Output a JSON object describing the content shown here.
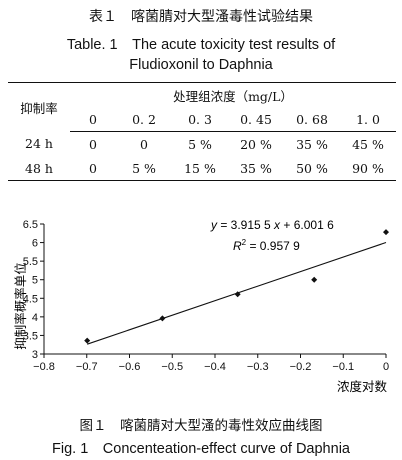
{
  "table": {
    "caption_cn": "表１　喀菌腈对大型溞毒性试验结果",
    "caption_en_line1": "Table. 1　The acute toxicity test results of",
    "caption_en_line2": "Fludioxonil to Daphnia",
    "row_header": "抑制率",
    "group_header": "处理组浓度（mg/L）",
    "columns": [
      "0",
      "0. 2",
      "0. 3",
      "0. 45",
      "0. 68",
      "1. 0"
    ],
    "rows": [
      {
        "label": "24 h",
        "cells": [
          "0",
          "0",
          "5 %",
          "20 %",
          "35 %",
          "45 %"
        ]
      },
      {
        "label": "48 h",
        "cells": [
          "0",
          "5 %",
          "15 %",
          "35 %",
          "50 %",
          "90 %"
        ]
      }
    ]
  },
  "figure": {
    "caption_cn": "图１　喀菌腈对大型溞的毒性效应曲线图",
    "caption_en": "Fig. 1　Concenteation-effect curve of Daphnia"
  },
  "chart_data": {
    "type": "scatter",
    "ylabel": "抑制率概率单位",
    "xlabel": "浓度对数",
    "xlim": [
      -0.8,
      0
    ],
    "ylim": [
      3,
      6.5
    ],
    "x_ticks": [
      "−0.8",
      "−0.7",
      "−0.6",
      "−0.5",
      "−0.4",
      "−0.3",
      "−0.2",
      "−0.1",
      "0"
    ],
    "y_ticks": [
      "3",
      "3.5",
      "4",
      "4.5",
      "5",
      "5.5",
      "6",
      "6.5"
    ],
    "points": [
      {
        "x": -0.699,
        "y": 3.36
      },
      {
        "x": -0.523,
        "y": 3.96
      },
      {
        "x": -0.347,
        "y": 4.61
      },
      {
        "x": -0.168,
        "y": 5.0
      },
      {
        "x": 0.0,
        "y": 6.28
      }
    ],
    "trendline": {
      "slope": 3.9155,
      "intercept": 6.0016,
      "x_from": -0.699,
      "x_to": 0
    },
    "equation_y": "y",
    "equation_rest": " = 3.915 5 ",
    "equation_x": "x",
    "equation_tail": " + 6.001 6",
    "r2_label": "R",
    "r2_sup": "2",
    "r2_value": " = 0.957 9"
  }
}
